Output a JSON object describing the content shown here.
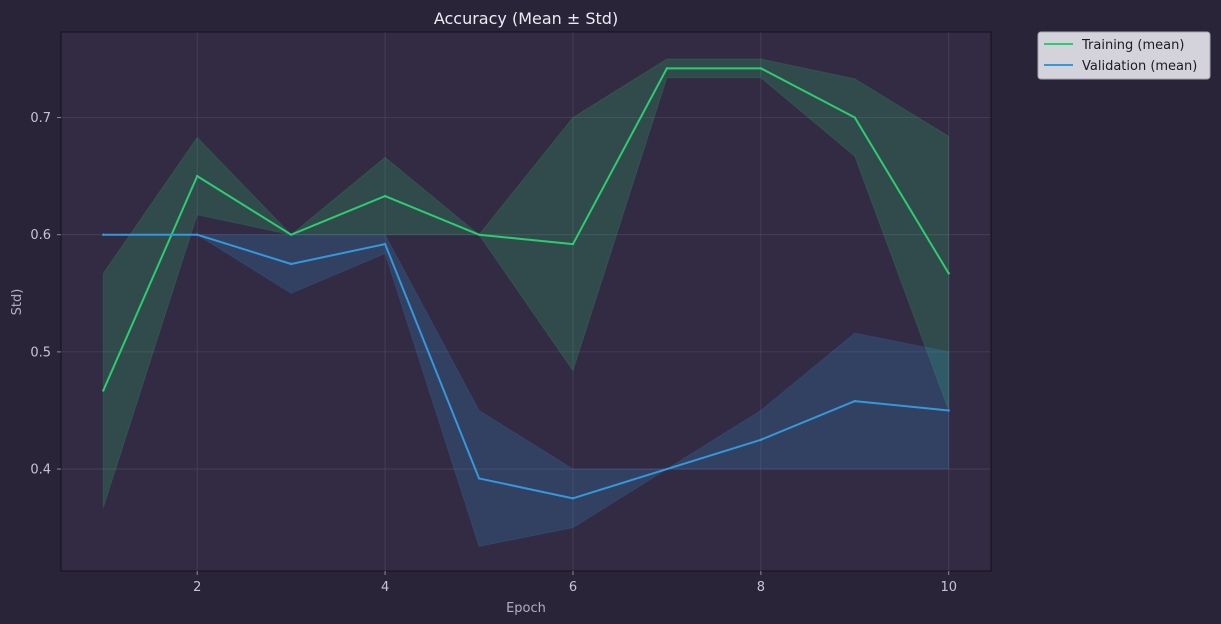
{
  "chart_data": {
    "type": "line",
    "title": "Accuracy (Mean ± Std)",
    "xlabel": "Epoch",
    "ylabel": "Std)",
    "xlim": [
      0.55,
      10.45
    ],
    "ylim": [
      0.313,
      0.773
    ],
    "xticks": [
      2,
      4,
      6,
      8,
      10
    ],
    "yticks": [
      0.4,
      0.5,
      0.6,
      0.7
    ],
    "x": [
      1,
      2,
      3,
      4,
      5,
      6,
      7,
      8,
      9,
      10
    ],
    "grid": true,
    "legend_position": "outside-top-right",
    "series": [
      {
        "name": "Training (mean)",
        "color": "#2ecc71",
        "values": [
          0.467,
          0.65,
          0.6,
          0.633,
          0.6,
          0.592,
          0.742,
          0.742,
          0.7,
          0.567
        ],
        "std": [
          0.1,
          0.033,
          0.0,
          0.033,
          0.0,
          0.108,
          0.008,
          0.008,
          0.033,
          0.117
        ]
      },
      {
        "name": "Validation (mean)",
        "color": "#3498db",
        "values": [
          0.6,
          0.6,
          0.575,
          0.592,
          0.392,
          0.375,
          0.4,
          0.425,
          0.458,
          0.45
        ],
        "std": [
          0.0,
          0.0,
          0.025,
          0.008,
          0.058,
          0.025,
          0.0,
          0.025,
          0.058,
          0.05
        ]
      }
    ]
  }
}
